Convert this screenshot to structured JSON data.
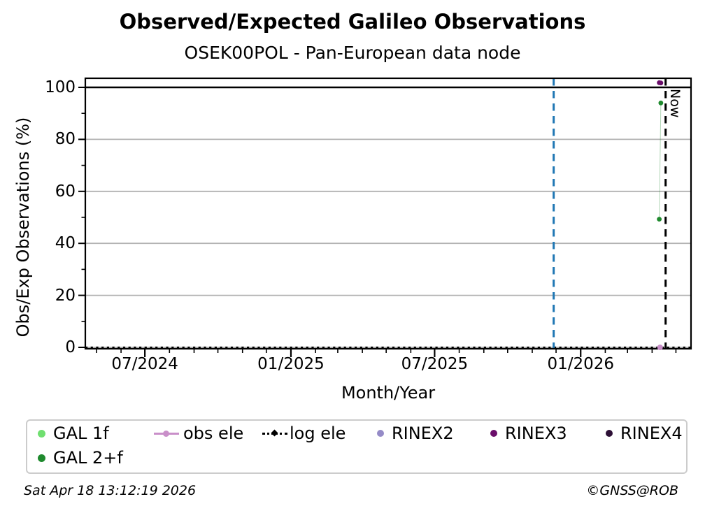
{
  "header": {
    "title": "Observed/Expected Galileo Observations",
    "subtitle": "OSEK00POL - Pan-European data node"
  },
  "footer": {
    "timestamp": "Sat Apr 18 13:12:19 2026",
    "copyright": "©GNSS@ROB"
  },
  "chart_data": {
    "type": "scatter",
    "title": "Observed/Expected Galileo Observations",
    "subtitle": "OSEK00POL - Pan-European data node",
    "xlabel": "Month/Year",
    "ylabel": "Obs/Exp Observations (%)",
    "now_label": "Now",
    "grid": true,
    "legend_position": "bottom",
    "xlim_dates": [
      "2024-04-17",
      "2026-05-20"
    ],
    "ylim": [
      -0.6,
      103.5
    ],
    "x_ticks": [
      {
        "label": "07/2024",
        "date": "2024-07-01"
      },
      {
        "label": "01/2025",
        "date": "2025-01-01"
      },
      {
        "label": "07/2025",
        "date": "2025-07-01"
      },
      {
        "label": "01/2026",
        "date": "2026-01-01"
      }
    ],
    "x_minor_ticks": "monthly",
    "y_ticks": [
      0,
      20,
      40,
      60,
      80,
      100
    ],
    "y_minor_ticks": [
      10,
      30,
      50,
      70,
      90
    ],
    "series": [
      {
        "name": "GAL 1f",
        "color": "#70df70",
        "marker": "dot",
        "points": []
      },
      {
        "name": "GAL 2+f",
        "color": "#1f8a2e",
        "marker": "dot",
        "connect": true,
        "points": [
          {
            "date": "2026-04-10",
            "value": 49.3
          },
          {
            "date": "2026-04-12",
            "value": 94.0
          }
        ]
      },
      {
        "name": "obs ele",
        "color": "#c98fc9",
        "marker": "dot-line",
        "points": [
          {
            "date": "2026-04-11",
            "value": 0
          }
        ]
      },
      {
        "name": "log ele",
        "color": "#000000",
        "marker": "diamond-dotted-line",
        "baseline_value": 0,
        "spans_full_width": true,
        "points": []
      },
      {
        "name": "RINEX2",
        "color": "#958bc7",
        "marker": "dot",
        "points": []
      },
      {
        "name": "RINEX3",
        "color": "#6a0d6a",
        "marker": "dot",
        "points": [
          {
            "date": "2026-04-10",
            "value": 101.8
          },
          {
            "date": "2026-04-12",
            "value": 101.7
          }
        ]
      },
      {
        "name": "RINEX4",
        "color": "#2d1036",
        "marker": "dot",
        "points": []
      }
    ],
    "reference_lines": [
      {
        "type": "hline",
        "value": 100,
        "style": "solid",
        "color": "#000000"
      },
      {
        "type": "vline",
        "date": "2025-11-28",
        "style": "dashed",
        "color": "#1f77b4"
      },
      {
        "type": "vline",
        "date": "2026-04-18",
        "style": "dashed",
        "color": "#000000",
        "label": "Now"
      }
    ],
    "legend_rows": [
      [
        "GAL 1f",
        "obs ele",
        "log ele",
        "RINEX2",
        "RINEX3",
        "RINEX4"
      ],
      [
        "GAL 2+f"
      ]
    ],
    "colors": {
      "grid": "#b2b2b2",
      "axis": "#000000",
      "now_line": "#000000",
      "event_line": "#1f77b4",
      "legend_border": "#cccccc"
    }
  }
}
